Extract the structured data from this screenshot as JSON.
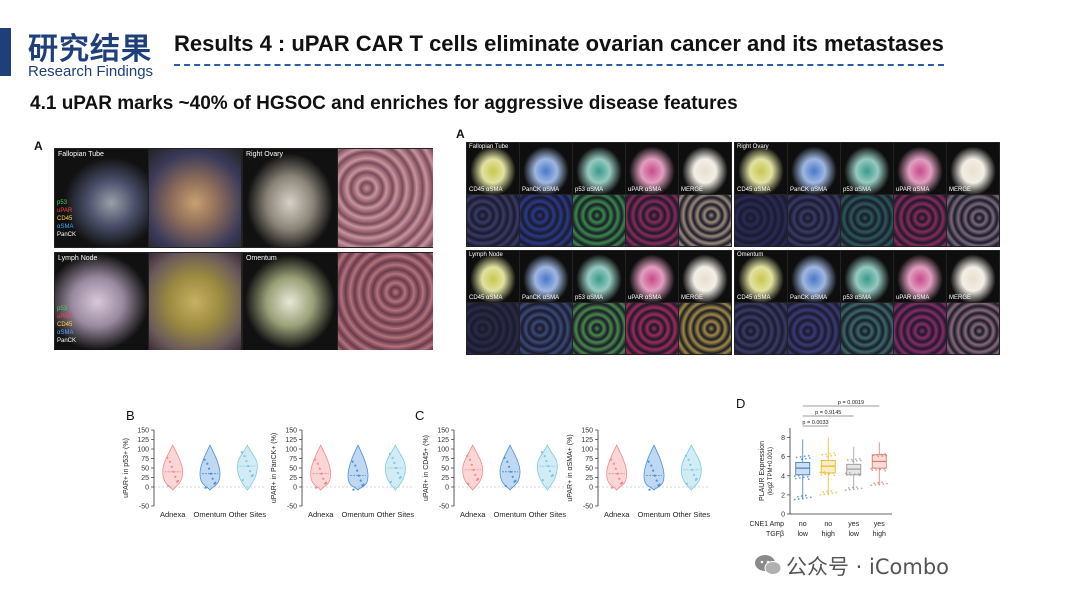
{
  "header": {
    "brand_cn": "研究结果",
    "brand_en": "Research Findings",
    "title": "Results 4 : uPAR CAR T cells eliminate ovarian cancer and its metastases"
  },
  "section": {
    "title": "4.1 uPAR marks ~40% of HGSOC and enriches for aggressive disease features"
  },
  "panels": {
    "left_a": {
      "letter": "A",
      "tiles": [
        "Fallopian Tube",
        "Right Ovary",
        "Lymph Node",
        "Omentum"
      ],
      "channels_top": [
        "p53",
        "uPAR",
        "CD45",
        "αSMA",
        "PanCK"
      ],
      "channels_bottom": [
        "p53",
        "uPAR",
        "CD45",
        "αSMA",
        "PanCK"
      ]
    },
    "right_a": {
      "letter": "A",
      "groups": [
        "Fallopian Tube",
        "Right Ovary",
        "Lymph Node",
        "Omentum"
      ],
      "columns": [
        "CD45 αSMA",
        "PanCK αSMA",
        "p53 αSMA",
        "uPAR αSMA",
        "MERGE"
      ]
    },
    "b": {
      "letter": "B"
    },
    "c": {
      "letter": "C"
    },
    "d": {
      "letter": "D"
    }
  },
  "chart_data": [
    {
      "type": "violin",
      "ylabel": "uPAR+ in p53+ (%)",
      "categories": [
        "Adnexa",
        "Omentum",
        "Other Sites"
      ],
      "yticks": [
        -50,
        0,
        25,
        50,
        75,
        100,
        125,
        150
      ],
      "ylim": [
        -50,
        150
      ],
      "medians": [
        40,
        35,
        55
      ],
      "colors": [
        "#f08a8a",
        "#4a90d9",
        "#7ec8e3"
      ]
    },
    {
      "type": "violin",
      "ylabel": "uPAR+ in PanCK+ (%)",
      "categories": [
        "Adnexa",
        "Omentum",
        "Other Sites"
      ],
      "yticks": [
        -50,
        0,
        25,
        50,
        75,
        100,
        125,
        150
      ],
      "ylim": [
        -50,
        150
      ],
      "medians": [
        35,
        30,
        50
      ],
      "colors": [
        "#f08a8a",
        "#4a90d9",
        "#7ec8e3"
      ]
    },
    {
      "type": "violin",
      "ylabel": "uPAR+ in CD45+ (%)",
      "categories": [
        "Adnexa",
        "Omentum",
        "Other Sites"
      ],
      "yticks": [
        -50,
        0,
        25,
        50,
        75,
        100,
        125,
        150
      ],
      "ylim": [
        -50,
        150
      ],
      "medians": [
        45,
        40,
        55
      ],
      "colors": [
        "#f08a8a",
        "#4a90d9",
        "#7ec8e3"
      ]
    },
    {
      "type": "violin",
      "ylabel": "uPAR+ in αSMA+ (%)",
      "categories": [
        "Adnexa",
        "Omentum",
        "Other Sites"
      ],
      "yticks": [
        -50,
        0,
        25,
        50,
        75,
        100,
        125,
        150
      ],
      "ylim": [
        -50,
        150
      ],
      "medians": [
        35,
        30,
        45
      ],
      "colors": [
        "#f08a8a",
        "#4a90d9",
        "#7ec8e3"
      ]
    },
    {
      "type": "box",
      "ylabel": "PLAUR Expression",
      "ylabel2": "(log2 TPM+0.001)",
      "yticks": [
        0,
        2,
        4,
        6,
        8
      ],
      "ylim": [
        0,
        9
      ],
      "row_labels": [
        "CCNE1 Amp",
        "TGFβ"
      ],
      "groups": [
        {
          "ccne1": "no",
          "tgfb": "low",
          "median": 4.8,
          "q1": 4.1,
          "q3": 5.4,
          "min": 1.5,
          "max": 7.8,
          "color": "#3b7fc4"
        },
        {
          "ccne1": "no",
          "tgfb": "high",
          "median": 5.0,
          "q1": 4.3,
          "q3": 5.6,
          "min": 2.0,
          "max": 8.0,
          "color": "#e8b825"
        },
        {
          "ccne1": "yes",
          "tgfb": "low",
          "median": 4.7,
          "q1": 4.1,
          "q3": 5.2,
          "min": 2.5,
          "max": 7.0,
          "color": "#9a9a9a"
        },
        {
          "ccne1": "yes",
          "tgfb": "high",
          "median": 5.5,
          "q1": 4.8,
          "q3": 6.2,
          "min": 3.0,
          "max": 7.5,
          "color": "#e07a6a"
        }
      ],
      "comparisons": [
        {
          "label": "p = 0.0033",
          "from": 0,
          "to": 1
        },
        {
          "label": "p = 0.9145",
          "from": 0,
          "to": 2
        },
        {
          "label": "p = 0.0019",
          "from": 0,
          "to": 3
        }
      ]
    }
  ],
  "watermark": {
    "text": "公众号 · iCombo"
  }
}
